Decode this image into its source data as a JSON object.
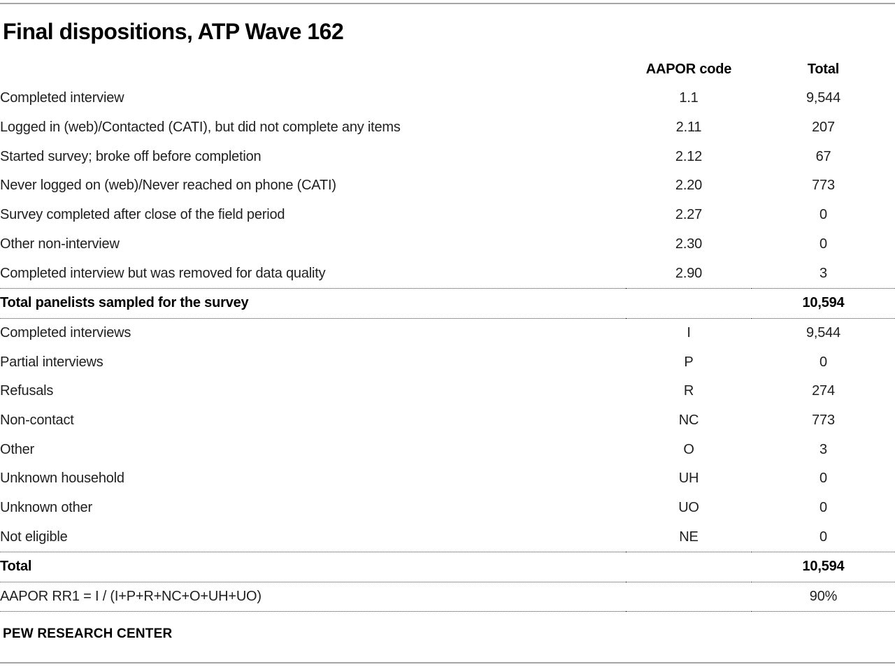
{
  "title": "Final dispositions, ATP Wave 162",
  "header": {
    "code": "AAPOR code",
    "total": "Total"
  },
  "section1": [
    {
      "label": "Completed interview",
      "code": "1.1",
      "total": "9,544"
    },
    {
      "label": "Logged in (web)/Contacted (CATI), but did not complete any items",
      "code": "2.11",
      "total": "207"
    },
    {
      "label": "Started survey; broke off before completion",
      "code": "2.12",
      "total": "67"
    },
    {
      "label": "Never logged on (web)/Never reached on phone (CATI)",
      "code": "2.20",
      "total": "773"
    },
    {
      "label": "Survey completed after close of the field period",
      "code": "2.27",
      "total": "0"
    },
    {
      "label": "Other non-interview",
      "code": "2.30",
      "total": "0"
    },
    {
      "label": "Completed interview but was removed for data quality",
      "code": "2.90",
      "total": "3"
    }
  ],
  "total_sampled": {
    "label": "Total panelists sampled for the survey",
    "total": "10,594"
  },
  "section2": [
    {
      "label": "Completed interviews",
      "code": "I",
      "total": "9,544"
    },
    {
      "label": "Partial interviews",
      "code": "P",
      "total": "0"
    },
    {
      "label": "Refusals",
      "code": "R",
      "total": "274"
    },
    {
      "label": "Non-contact",
      "code": "NC",
      "total": "773"
    },
    {
      "label": "Other",
      "code": "O",
      "total": "3"
    },
    {
      "label": "Unknown household",
      "code": "UH",
      "total": "0"
    },
    {
      "label": "Unknown other",
      "code": "UO",
      "total": "0"
    },
    {
      "label": "Not eligible",
      "code": "NE",
      "total": "0"
    }
  ],
  "grand_total": {
    "label": "Total",
    "total": "10,594"
  },
  "response_rate": {
    "label": "AAPOR RR1 = I / (I+P+R+NC+O+UH+UO)",
    "total": "90%"
  },
  "footer": "PEW RESEARCH CENTER",
  "colors": {
    "text": "#1f1f1f",
    "bold_text": "#000000",
    "horizontal_rule": "#a6a6a6",
    "dotted_divider": "#3a3a3a",
    "background": "#ffffff"
  },
  "chart_data": {
    "type": "table",
    "title": "Final dispositions, ATP Wave 162",
    "columns": [
      "",
      "AAPOR code",
      "Total"
    ],
    "rows": [
      [
        "Completed interview",
        "1.1",
        "9,544"
      ],
      [
        "Logged in (web)/Contacted (CATI), but did not complete any items",
        "2.11",
        "207"
      ],
      [
        "Started survey; broke off before completion",
        "2.12",
        "67"
      ],
      [
        "Never logged on (web)/Never reached on phone (CATI)",
        "2.20",
        "773"
      ],
      [
        "Survey completed after close of the field period",
        "2.27",
        "0"
      ],
      [
        "Other non-interview",
        "2.30",
        "0"
      ],
      [
        "Completed interview but was removed for data quality",
        "2.90",
        "3"
      ],
      [
        "Total panelists sampled for the survey",
        "",
        "10,594"
      ],
      [
        "Completed interviews",
        "I",
        "9,544"
      ],
      [
        "Partial interviews",
        "P",
        "0"
      ],
      [
        "Refusals",
        "R",
        "274"
      ],
      [
        "Non-contact",
        "NC",
        "773"
      ],
      [
        "Other",
        "O",
        "3"
      ],
      [
        "Unknown household",
        "UH",
        "0"
      ],
      [
        "Unknown other",
        "UO",
        "0"
      ],
      [
        "Not eligible",
        "NE",
        "0"
      ],
      [
        "Total",
        "",
        "10,594"
      ],
      [
        "AAPOR RR1 = I / (I+P+R+NC+O+UH+UO)",
        "",
        "90%"
      ]
    ],
    "bold_rows": [
      7,
      16
    ],
    "source": "PEW RESEARCH CENTER"
  }
}
